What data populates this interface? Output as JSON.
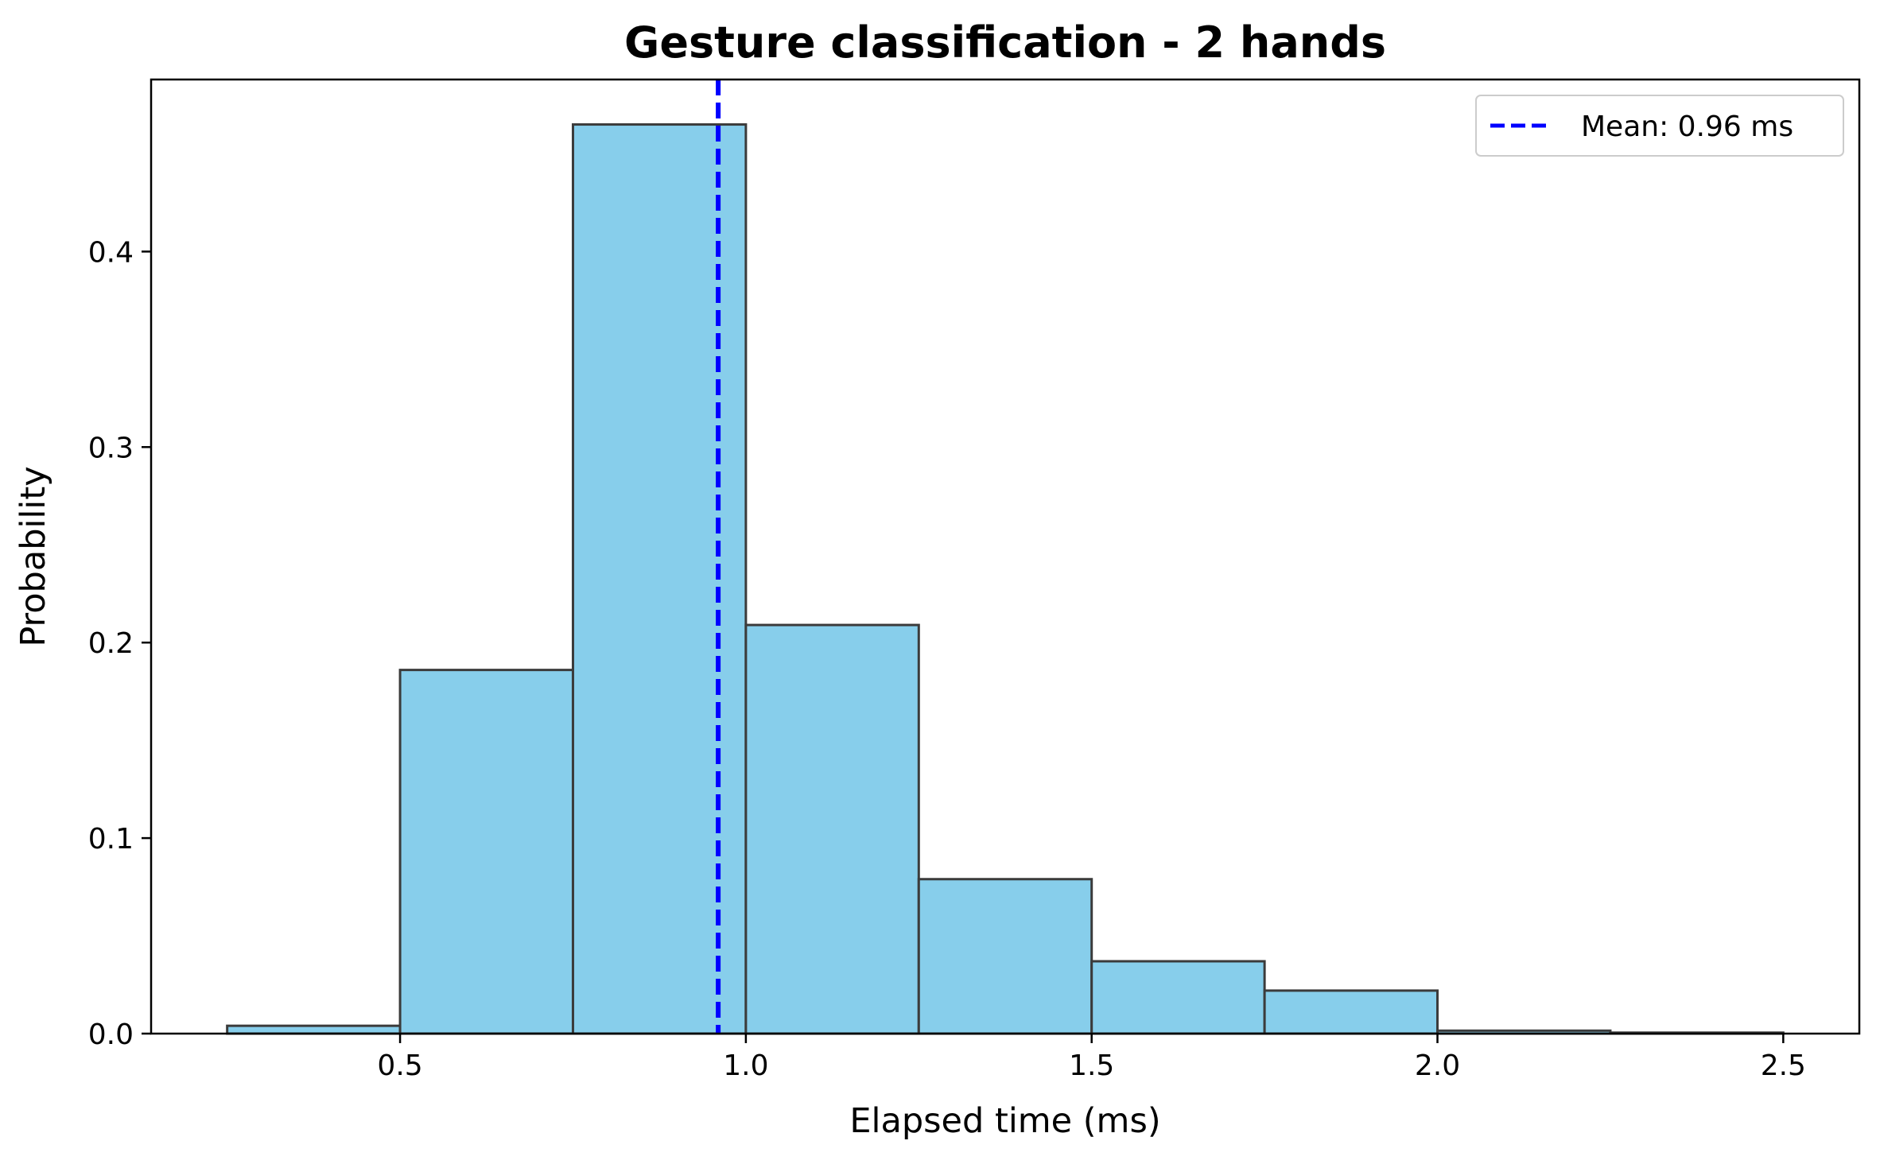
{
  "chart_data": {
    "type": "bar",
    "subtype": "histogram",
    "title": "Gesture classification - 2 hands",
    "xlabel": "Elapsed time (ms)",
    "ylabel": "Probability",
    "xlim": [
      0.14,
      2.61
    ],
    "ylim": [
      0,
      0.488
    ],
    "x_ticks": [
      0.5,
      1.0,
      1.5,
      2.0,
      2.5
    ],
    "x_tick_labels": [
      "0.5",
      "1.0",
      "1.5",
      "2.0",
      "2.5"
    ],
    "y_ticks": [
      0.0,
      0.1,
      0.2,
      0.3,
      0.4
    ],
    "y_tick_labels": [
      "0.0",
      "0.1",
      "0.2",
      "0.3",
      "0.4"
    ],
    "bin_edges": [
      0.25,
      0.5,
      0.75,
      1.0,
      1.25,
      1.5,
      1.75,
      2.0,
      2.25,
      2.5
    ],
    "values": [
      0.004,
      0.186,
      0.465,
      0.209,
      0.079,
      0.037,
      0.022,
      0.0015,
      0.0005
    ],
    "bar_color": "#87ceeb",
    "bar_edge_color": "#3b3b3b",
    "mean_line": {
      "x": 0.96,
      "color": "#0000ff",
      "style": "dashed",
      "label": "Mean: 0.96 ms"
    },
    "legend": {
      "position": "top-right"
    },
    "grid": false
  }
}
